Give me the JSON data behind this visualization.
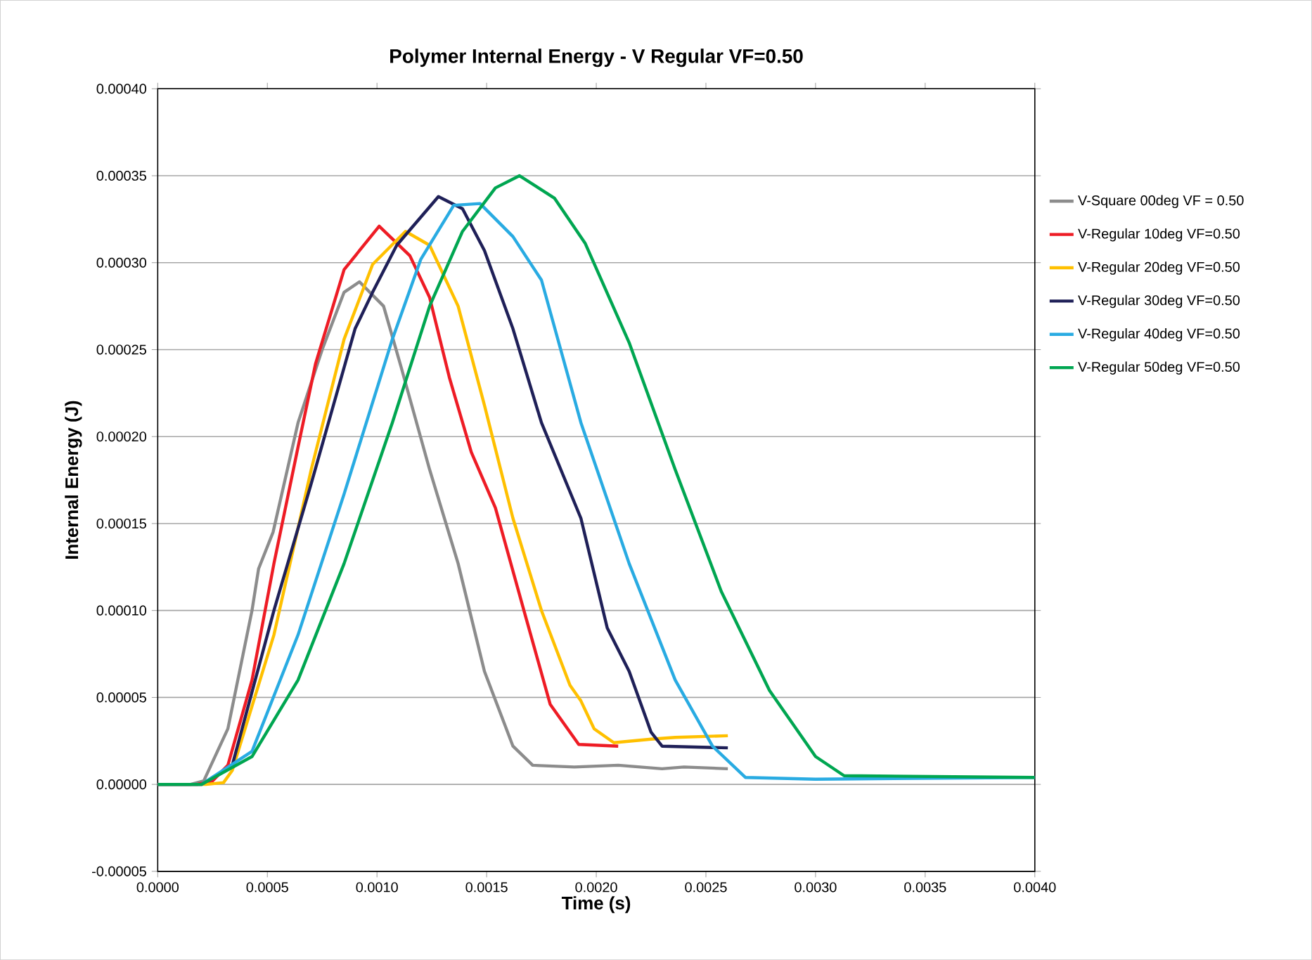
{
  "chart_data": {
    "type": "line",
    "title": "Polymer Internal Energy - V Regular VF=0.50",
    "xlabel": "Time (s)",
    "ylabel": "Internal Energy (J)",
    "xlim": [
      0,
      0.004
    ],
    "ylim": [
      -5e-05,
      0.0004
    ],
    "xticks": [
      {
        "value": 0,
        "label": "0.0000"
      },
      {
        "value": 0.0005,
        "label": "0.0005"
      },
      {
        "value": 0.001,
        "label": "0.0010"
      },
      {
        "value": 0.0015,
        "label": "0.0015"
      },
      {
        "value": 0.002,
        "label": "0.0020"
      },
      {
        "value": 0.0025,
        "label": "0.0025"
      },
      {
        "value": 0.003,
        "label": "0.0030"
      },
      {
        "value": 0.0035,
        "label": "0.0035"
      },
      {
        "value": 0.004,
        "label": "0.0040"
      }
    ],
    "yticks": [
      {
        "value": -5e-05,
        "label": "-0.00005"
      },
      {
        "value": 0,
        "label": "0.00000"
      },
      {
        "value": 5e-05,
        "label": "0.00005"
      },
      {
        "value": 0.0001,
        "label": "0.00010"
      },
      {
        "value": 0.00015,
        "label": "0.00015"
      },
      {
        "value": 0.0002,
        "label": "0.00020"
      },
      {
        "value": 0.00025,
        "label": "0.00025"
      },
      {
        "value": 0.0003,
        "label": "0.00030"
      },
      {
        "value": 0.00035,
        "label": "0.00035"
      },
      {
        "value": 0.0004,
        "label": "0.00040"
      }
    ],
    "grid": "y",
    "legend": "right",
    "marker": "none",
    "line_style": "solid",
    "series": [
      {
        "name": "V-Square 00deg VF = 0.50",
        "color": "#8c8c8c",
        "x": [
          0,
          0.00015,
          0.00021,
          0.00032,
          0.00043,
          0.00046,
          0.000526,
          0.00064,
          0.00075,
          0.00085,
          0.00092,
          0.00103,
          0.00111,
          0.00124,
          0.00137,
          0.00149,
          0.00162,
          0.00171,
          0.0019,
          0.0021,
          0.0023,
          0.0024,
          0.0026
        ],
        "values": [
          0,
          0,
          2e-06,
          3.2e-05,
          0.0001,
          0.000124,
          0.000145,
          0.000208,
          0.00025,
          0.000283,
          0.000289,
          0.000275,
          0.00024,
          0.000181,
          0.000127,
          6.5e-05,
          2.2e-05,
          1.1e-05,
          1e-05,
          1.1e-05,
          9e-06,
          1e-05,
          9e-06
        ]
      },
      {
        "name": "V-Regular 10deg VF=0.50",
        "color": "#ee1c25",
        "x": [
          0,
          0.00018,
          0.00025,
          0.00032,
          0.00043,
          0.00053,
          0.00064,
          0.00072,
          0.00085,
          0.00101,
          0.00115,
          0.00124,
          0.00133,
          0.00143,
          0.00154,
          0.00167,
          0.00179,
          0.00192,
          0.0021
        ],
        "values": [
          0,
          0,
          2e-06,
          1.1e-05,
          6e-05,
          0.000127,
          0.000194,
          0.000242,
          0.000296,
          0.000321,
          0.000304,
          0.00028,
          0.000234,
          0.000191,
          0.000159,
          0.0001,
          4.6e-05,
          2.3e-05,
          2.2e-05
        ]
      },
      {
        "name": "V-Regular 20deg VF=0.50",
        "color": "#ffc000",
        "x": [
          0,
          0.00022,
          0.0003,
          0.00034,
          0.00053,
          0.0007,
          0.00085,
          0.00098,
          0.00113,
          0.00124,
          0.00137,
          0.00149,
          0.00162,
          0.00175,
          0.00188,
          0.00193,
          0.00199,
          0.00208,
          0.00225,
          0.00236,
          0.0026
        ],
        "values": [
          0,
          0,
          1e-06,
          8e-06,
          8.6e-05,
          0.000181,
          0.000256,
          0.000299,
          0.000318,
          0.00031,
          0.000275,
          0.000218,
          0.000153,
          0.0001,
          5.7e-05,
          4.8e-05,
          3.2e-05,
          2.4e-05,
          2.6e-05,
          2.7e-05,
          2.8e-05
        ]
      },
      {
        "name": "V-Regular 30deg VF=0.50",
        "color": "#1f2058",
        "x": [
          0,
          0.0002,
          0.00034,
          0.00053,
          0.0007,
          0.0009,
          0.00098,
          0.00109,
          0.00128,
          0.00139,
          0.00149,
          0.00162,
          0.00175,
          0.00193,
          0.00205,
          0.00215,
          0.00225,
          0.0023,
          0.0026
        ],
        "values": [
          0,
          0,
          1.1e-05,
          0.0001,
          0.000173,
          0.000262,
          0.000283,
          0.00031,
          0.000338,
          0.000331,
          0.000307,
          0.000262,
          0.000208,
          0.000153,
          9e-05,
          6.5e-05,
          3e-05,
          2.2e-05,
          2.1e-05
        ]
      },
      {
        "name": "V-Regular 40deg VF=0.50",
        "color": "#29abe2",
        "x": [
          0,
          0.0002,
          0.00043,
          0.00064,
          0.00085,
          0.00107,
          0.0012,
          0.00135,
          0.00147,
          0.00162,
          0.00175,
          0.00193,
          0.00215,
          0.00236,
          0.00253,
          0.00268,
          0.003,
          0.004
        ],
        "values": [
          0,
          0,
          1.9e-05,
          8.6e-05,
          0.000167,
          0.000256,
          0.000302,
          0.000333,
          0.000334,
          0.000315,
          0.00029,
          0.000208,
          0.000127,
          6e-05,
          2.2e-05,
          4e-06,
          3e-06,
          4e-06
        ]
      },
      {
        "name": "V-Regular 50deg VF=0.50",
        "color": "#00a651",
        "x": [
          0,
          0.0002,
          0.00043,
          0.00064,
          0.00085,
          0.00107,
          0.00124,
          0.00139,
          0.00154,
          0.00165,
          0.00181,
          0.00195,
          0.00215,
          0.00236,
          0.00257,
          0.00279,
          0.003,
          0.00313,
          0.004
        ],
        "values": [
          0,
          0,
          1.6e-05,
          6e-05,
          0.000127,
          0.000208,
          0.000275,
          0.000318,
          0.000343,
          0.00035,
          0.000337,
          0.000311,
          0.000254,
          0.000181,
          0.000111,
          5.4e-05,
          1.6e-05,
          5e-06,
          4e-06
        ]
      }
    ]
  }
}
